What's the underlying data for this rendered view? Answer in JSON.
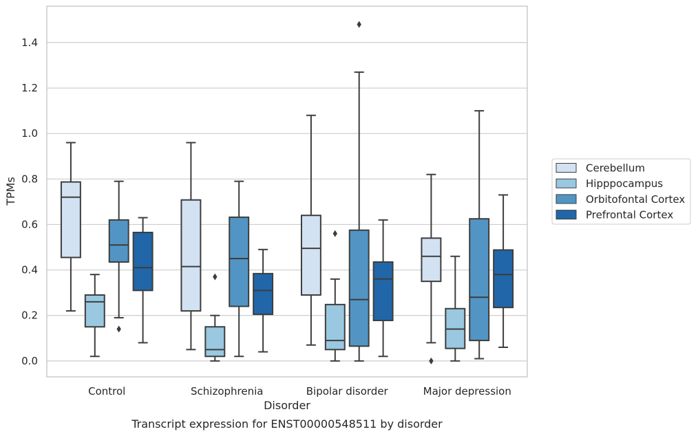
{
  "caption": "Transcript expression for ENST00000548511 by disorder",
  "chart_data": {
    "type": "boxplot",
    "xlabel": "Disorder",
    "ylabel": "TPMs",
    "ylim": [
      -0.07,
      1.56
    ],
    "yticks": [
      "0.0",
      "0.2",
      "0.4",
      "0.6",
      "0.8",
      "1.0",
      "1.2",
      "1.4"
    ],
    "grid": "horizontal",
    "legend_position": "right",
    "categories": [
      "Control",
      "Schizophrenia",
      "Bipolar disorder",
      "Major depression"
    ],
    "series": [
      {
        "name": "Cerebellum",
        "color": "#d2e2f2",
        "boxes": [
          {
            "whislo": 0.22,
            "q1": 0.455,
            "med": 0.72,
            "q3": 0.787,
            "whishi": 0.96,
            "fliers": []
          },
          {
            "whislo": 0.05,
            "q1": 0.22,
            "med": 0.415,
            "q3": 0.708,
            "whishi": 0.96,
            "fliers": []
          },
          {
            "whislo": 0.07,
            "q1": 0.29,
            "med": 0.495,
            "q3": 0.64,
            "whishi": 1.08,
            "fliers": []
          },
          {
            "whislo": 0.08,
            "q1": 0.35,
            "med": 0.46,
            "q3": 0.54,
            "whishi": 0.82,
            "fliers": [
              0.0
            ]
          }
        ]
      },
      {
        "name": "Hipppocampus",
        "color": "#9ac8e0",
        "boxes": [
          {
            "whislo": 0.02,
            "q1": 0.15,
            "med": 0.26,
            "q3": 0.29,
            "whishi": 0.38,
            "fliers": []
          },
          {
            "whislo": 0.0,
            "q1": 0.02,
            "med": 0.05,
            "q3": 0.15,
            "whishi": 0.2,
            "fliers": [
              0.37
            ]
          },
          {
            "whislo": 0.0,
            "q1": 0.05,
            "med": 0.09,
            "q3": 0.248,
            "whishi": 0.36,
            "fliers": [
              0.56
            ]
          },
          {
            "whislo": 0.0,
            "q1": 0.055,
            "med": 0.14,
            "q3": 0.23,
            "whishi": 0.46,
            "fliers": []
          }
        ]
      },
      {
        "name": "Orbitofontal Cortex",
        "color": "#5295c4",
        "boxes": [
          {
            "whislo": 0.19,
            "q1": 0.435,
            "med": 0.51,
            "q3": 0.62,
            "whishi": 0.79,
            "fliers": [
              0.14
            ]
          },
          {
            "whislo": 0.02,
            "q1": 0.24,
            "med": 0.45,
            "q3": 0.632,
            "whishi": 0.79,
            "fliers": []
          },
          {
            "whislo": 0.0,
            "q1": 0.065,
            "med": 0.27,
            "q3": 0.575,
            "whishi": 1.27,
            "fliers": [
              1.48
            ]
          },
          {
            "whislo": 0.01,
            "q1": 0.09,
            "med": 0.28,
            "q3": 0.625,
            "whishi": 1.1,
            "fliers": []
          }
        ]
      },
      {
        "name": "Prefrontal Cortex",
        "color": "#2166a8",
        "boxes": [
          {
            "whislo": 0.08,
            "q1": 0.31,
            "med": 0.41,
            "q3": 0.565,
            "whishi": 0.63,
            "fliers": []
          },
          {
            "whislo": 0.04,
            "q1": 0.205,
            "med": 0.31,
            "q3": 0.384,
            "whishi": 0.49,
            "fliers": []
          },
          {
            "whislo": 0.02,
            "q1": 0.178,
            "med": 0.36,
            "q3": 0.435,
            "whishi": 0.62,
            "fliers": []
          },
          {
            "whislo": 0.06,
            "q1": 0.235,
            "med": 0.38,
            "q3": 0.488,
            "whishi": 0.73,
            "fliers": []
          }
        ]
      }
    ]
  }
}
